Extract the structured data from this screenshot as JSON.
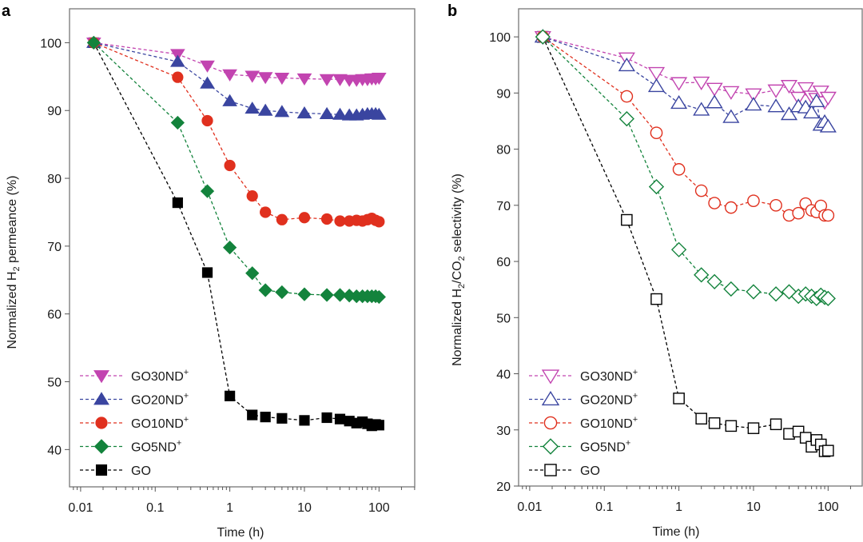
{
  "chart_data": [
    {
      "panel": "a",
      "type": "line",
      "title": "",
      "xlabel": "Time (h)",
      "ylabel": "Normalized H2 permeance (%)",
      "ylabel_parts": {
        "pre": "Normalized H",
        "sub": "2",
        "post": " permeance (%)"
      },
      "xscale": "log",
      "xlim": [
        0.0071,
        301
      ],
      "ylim": [
        34.5,
        105
      ],
      "xticks": [
        0.01,
        0.1,
        1,
        10,
        100
      ],
      "xtick_labels": [
        "0.01",
        "0.1",
        "1",
        "10",
        "100"
      ],
      "yticks": [
        40,
        50,
        60,
        70,
        80,
        90,
        100
      ],
      "ytick_labels": [
        "40",
        "50",
        "60",
        "70",
        "80",
        "90",
        "100"
      ],
      "grid": false,
      "legend_position": "bottom-left",
      "marker_fill": "filled",
      "x": [
        0.015,
        0.2,
        0.5,
        1,
        2,
        3,
        5,
        10,
        20,
        30,
        40,
        50,
        60,
        70,
        80,
        90,
        100
      ],
      "series": [
        {
          "name": "GO30ND+",
          "label_base": "GO30ND",
          "label_sup": "+",
          "color": "#c244b0",
          "marker": "triangle-down",
          "values": [
            100,
            98.3,
            96.6,
            95.3,
            95.1,
            94.9,
            94.8,
            94.7,
            94.6,
            94.6,
            94.5,
            94.5,
            94.6,
            94.6,
            94.7,
            94.7,
            94.8
          ]
        },
        {
          "name": "GO20ND+",
          "label_base": "GO20ND",
          "label_sup": "+",
          "color": "#3a45a0",
          "marker": "triangle-up",
          "values": [
            100,
            97.2,
            94.0,
            91.4,
            90.3,
            90.0,
            89.8,
            89.6,
            89.5,
            89.4,
            89.3,
            89.3,
            89.4,
            89.5,
            89.5,
            89.5,
            89.4
          ]
        },
        {
          "name": "GO10ND+",
          "label_base": "GO10ND",
          "label_sup": "+",
          "color": "#e0301e",
          "marker": "circle",
          "values": [
            100,
            94.9,
            88.5,
            81.9,
            77.4,
            75.0,
            73.9,
            74.2,
            74.0,
            73.7,
            73.7,
            73.8,
            73.7,
            73.9,
            74.1,
            73.8,
            73.6
          ]
        },
        {
          "name": "GO5ND+",
          "label_base": "GO5ND",
          "label_sup": "+",
          "color": "#13833c",
          "marker": "diamond",
          "values": [
            100,
            88.2,
            78.1,
            69.8,
            66.0,
            63.5,
            63.2,
            62.9,
            62.8,
            62.8,
            62.7,
            62.6,
            62.6,
            62.6,
            62.6,
            62.6,
            62.5
          ]
        },
        {
          "name": "GO",
          "label_base": "GO",
          "label_sup": "",
          "color": "#000000",
          "marker": "square",
          "values": [
            100,
            76.4,
            66.1,
            47.9,
            45.1,
            44.8,
            44.6,
            44.3,
            44.7,
            44.5,
            44.2,
            43.9,
            44.1,
            43.8,
            43.5,
            43.7,
            43.6
          ]
        }
      ]
    },
    {
      "panel": "b",
      "type": "line",
      "title": "",
      "xlabel": "Time (h)",
      "ylabel": "Normalized H2/CO2 selectivity (%)",
      "ylabel_parts": {
        "pre": "Normalized H",
        "sub": "2",
        "mid": "/CO",
        "sub2": "2",
        "post": " selectivity (%)"
      },
      "xscale": "log",
      "xlim": [
        0.0071,
        301
      ],
      "ylim": [
        20,
        105
      ],
      "xticks": [
        0.01,
        0.1,
        1,
        10,
        100
      ],
      "xtick_labels": [
        "0.01",
        "0.1",
        "1",
        "10",
        "100"
      ],
      "yticks": [
        20,
        30,
        40,
        50,
        60,
        70,
        80,
        90,
        100
      ],
      "ytick_labels": [
        "20",
        "30",
        "40",
        "50",
        "60",
        "70",
        "80",
        "90",
        "100"
      ],
      "grid": false,
      "legend_position": "bottom-left",
      "marker_fill": "open",
      "x": [
        0.015,
        0.2,
        0.5,
        1,
        2,
        3,
        5,
        10,
        20,
        30,
        40,
        50,
        60,
        70,
        80,
        90,
        100
      ],
      "series": [
        {
          "name": "GO30ND+",
          "label_base": "GO30ND",
          "label_sup": "+",
          "color": "#c244b0",
          "marker": "triangle-down",
          "values": [
            100,
            96.2,
            93.6,
            91.8,
            91.9,
            90.8,
            90.2,
            89.8,
            90.5,
            91.3,
            89.2,
            90.9,
            89.4,
            89.0,
            90.3,
            88.4,
            89.2
          ]
        },
        {
          "name": "GO20ND+",
          "label_base": "GO20ND",
          "label_sup": "+",
          "color": "#3a45a0",
          "marker": "triangle-up",
          "values": [
            100,
            94.9,
            91.2,
            88.2,
            87.0,
            88.3,
            85.7,
            87.9,
            87.6,
            86.2,
            87.6,
            87.4,
            86.5,
            88.5,
            84.3,
            84.8,
            84.0
          ]
        },
        {
          "name": "GO10ND+",
          "label_base": "GO10ND",
          "label_sup": "+",
          "color": "#e0301e",
          "marker": "circle",
          "values": [
            100,
            89.4,
            82.9,
            76.4,
            72.6,
            70.4,
            69.6,
            70.8,
            70.0,
            68.2,
            68.6,
            70.3,
            69.1,
            68.8,
            69.9,
            68.2,
            68.2
          ]
        },
        {
          "name": "GO5ND+",
          "label_base": "GO5ND",
          "label_sup": "+",
          "color": "#13833c",
          "marker": "diamond",
          "values": [
            100,
            85.4,
            73.3,
            62.1,
            57.6,
            56.4,
            55.1,
            54.6,
            54.2,
            54.6,
            53.8,
            54.2,
            53.8,
            53.4,
            54.0,
            53.6,
            53.4
          ]
        },
        {
          "name": "GO",
          "label_base": "GO",
          "label_sup": "",
          "color": "#000000",
          "marker": "square",
          "values": [
            100,
            67.4,
            53.3,
            35.6,
            32.0,
            31.2,
            30.7,
            30.3,
            31.0,
            29.3,
            29.7,
            28.6,
            27.0,
            28.2,
            27.4,
            26.2,
            26.3
          ]
        }
      ]
    }
  ]
}
